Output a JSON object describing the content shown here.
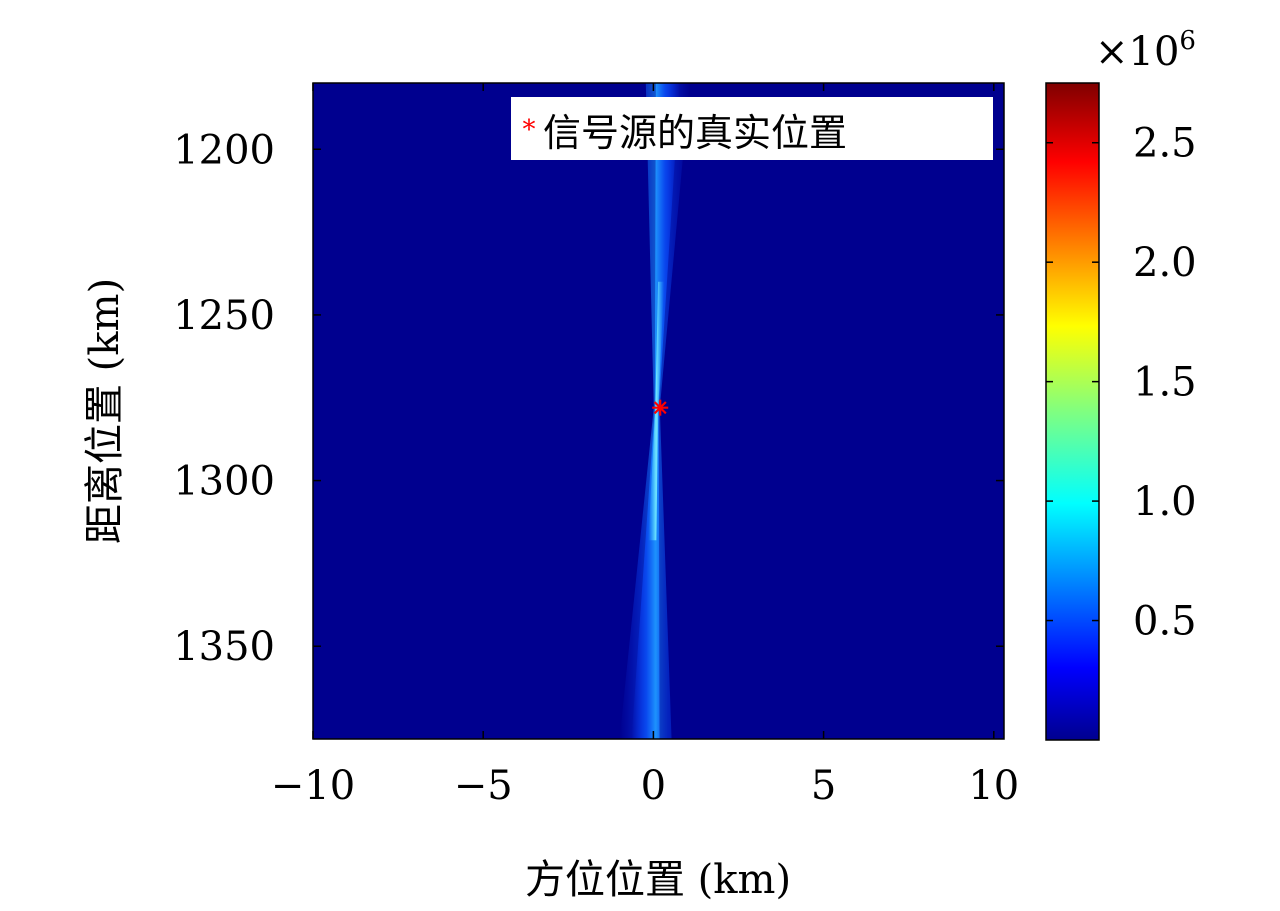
{
  "chart_data": {
    "type": "heatmap",
    "title": "",
    "xlabel": "方位位置 (km)",
    "ylabel": "距离位置 (km)",
    "xlim": [
      -10,
      10.3
    ],
    "ylim": [
      1378,
      1180
    ],
    "y_inverted": true,
    "grid": false,
    "xticks": [
      -10,
      -5,
      0,
      5,
      10
    ],
    "xtick_labels": [
      "−10",
      "−5",
      "0",
      "5",
      "10"
    ],
    "yticks": [
      1200,
      1250,
      1300,
      1350
    ],
    "ytick_labels": [
      "1200",
      "1250",
      "1300",
      "1350"
    ],
    "colormap": "jet",
    "colorbar": {
      "min": 0,
      "max": 2.75,
      "multiplier_label": "×10",
      "multiplier_exponent": "6",
      "ticks": [
        0.5,
        1.0,
        1.5,
        2.0,
        2.5
      ],
      "tick_labels": [
        "0.5",
        "1.0",
        "1.5",
        "2.0",
        "2.5"
      ]
    },
    "energy_focus": {
      "center_x": 0.1,
      "center_y": 1278,
      "slope_km_per_km": -0.0033,
      "peak_value": 1.0
    },
    "series": [
      {
        "name": "信号源的真实位置",
        "type": "scatter",
        "marker": "*",
        "color": "#ff0000",
        "points": [
          {
            "x": 0.2,
            "y": 1278
          }
        ]
      }
    ],
    "legend": {
      "position": "top-right",
      "label": "信号源的真实位置"
    }
  }
}
